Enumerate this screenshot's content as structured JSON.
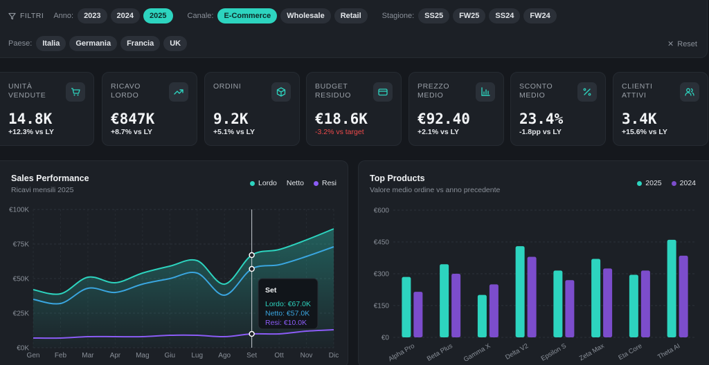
{
  "filters": {
    "title": "FILTRI",
    "anno_label": "Anno:",
    "anni": [
      {
        "label": "2023",
        "active": false
      },
      {
        "label": "2024",
        "active": false
      },
      {
        "label": "2025",
        "active": true
      }
    ],
    "canale_label": "Canale:",
    "canali": [
      {
        "label": "E-Commerce",
        "active": true
      },
      {
        "label": "Wholesale",
        "active": false
      },
      {
        "label": "Retail",
        "active": false
      }
    ],
    "stagione_label": "Stagione:",
    "stagioni": [
      {
        "label": "SS25",
        "active": false
      },
      {
        "label": "FW25",
        "active": false
      },
      {
        "label": "SS24",
        "active": false
      },
      {
        "label": "FW24",
        "active": false
      }
    ],
    "paese_label": "Paese:",
    "paesi": [
      {
        "label": "Italia",
        "active": false
      },
      {
        "label": "Germania",
        "active": false
      },
      {
        "label": "Francia",
        "active": false
      },
      {
        "label": "UK",
        "active": false
      }
    ],
    "reset_label": "Reset"
  },
  "kpis": [
    {
      "label": "Unità vendute",
      "value": "14.8K",
      "delta": "+12.3% vs LY",
      "negative": false,
      "icon": "cart-icon"
    },
    {
      "label": "Ricavo lordo",
      "value": "€847K",
      "delta": "+8.7% vs LY",
      "negative": false,
      "icon": "trend-up-icon"
    },
    {
      "label": "Ordini",
      "value": "9.2K",
      "delta": "+5.1% vs LY",
      "negative": false,
      "icon": "box-icon"
    },
    {
      "label": "Budget residuo",
      "value": "€18.6K",
      "delta": "-3.2% vs target",
      "negative": true,
      "icon": "card-icon"
    },
    {
      "label": "Prezzo medio",
      "value": "€92.40",
      "delta": "+2.1% vs LY",
      "negative": false,
      "icon": "bar-chart-icon"
    },
    {
      "label": "Sconto medio",
      "value": "23.4%",
      "delta": "-1.8pp vs LY",
      "negative": false,
      "icon": "percent-icon"
    },
    {
      "label": "Clienti attivi",
      "value": "3.4K",
      "delta": "+15.6% vs LY",
      "negative": false,
      "icon": "users-icon"
    }
  ],
  "sales": {
    "title": "Sales Performance",
    "subtitle": "Ricavi mensili 2025",
    "legend": [
      {
        "name": "Lordo",
        "color": "#2dd4bf"
      },
      {
        "name": "Netto",
        "color": "#3aa6e0"
      },
      {
        "name": "Resi",
        "color": "#8b5cf6"
      }
    ],
    "tooltip": {
      "title": "Set",
      "lines": [
        "Lordo: €67.0K",
        "Netto: €57.0K",
        "Resi: €10.0K"
      ]
    }
  },
  "products": {
    "title": "Top Products",
    "subtitle": "Valore medio ordine vs anno precedente",
    "legend": [
      {
        "name": "2025",
        "color": "#2dd4bf"
      },
      {
        "name": "2024",
        "color": "#7c4dcc"
      }
    ]
  },
  "chart_data": [
    {
      "type": "area",
      "title": "Sales Performance",
      "x": [
        "Gen",
        "Feb",
        "Mar",
        "Apr",
        "Mag",
        "Giu",
        "Lug",
        "Ago",
        "Set",
        "Ott",
        "Nov",
        "Dic"
      ],
      "yticks": [
        "€0K",
        "€25K",
        "€50K",
        "€75K",
        "€100K"
      ],
      "ylim": [
        0,
        100
      ],
      "grid": true,
      "highlight_index": 8,
      "series": [
        {
          "name": "Lordo",
          "color": "#2dd4bf",
          "values": [
            42,
            39,
            51,
            47,
            54,
            59,
            63,
            46,
            67,
            71,
            78,
            86
          ]
        },
        {
          "name": "Netto",
          "color": "#3aa6e0",
          "values": [
            35,
            32,
            43,
            40,
            46,
            50,
            54,
            38,
            57,
            60,
            66,
            73
          ]
        },
        {
          "name": "Resi",
          "color": "#8b5cf6",
          "values": [
            7,
            7,
            8,
            8,
            8,
            9,
            9,
            8,
            10,
            10,
            12,
            13
          ]
        }
      ]
    },
    {
      "type": "bar",
      "title": "Top Products",
      "categories": [
        "Alpha Pro",
        "Beta Plus",
        "Gamma X",
        "Delta V2",
        "Epsilon S",
        "Zeta Max",
        "Eta Core",
        "Theta AI"
      ],
      "yticks": [
        "€0",
        "€150",
        "€300",
        "€450",
        "€600"
      ],
      "ylim": [
        0,
        600
      ],
      "grid": true,
      "series": [
        {
          "name": "2025",
          "color": "#2dd4bf",
          "values": [
            285,
            345,
            200,
            430,
            315,
            370,
            295,
            460
          ]
        },
        {
          "name": "2024",
          "color": "#7c4dcc",
          "values": [
            215,
            300,
            250,
            380,
            270,
            325,
            315,
            385
          ]
        }
      ]
    }
  ]
}
